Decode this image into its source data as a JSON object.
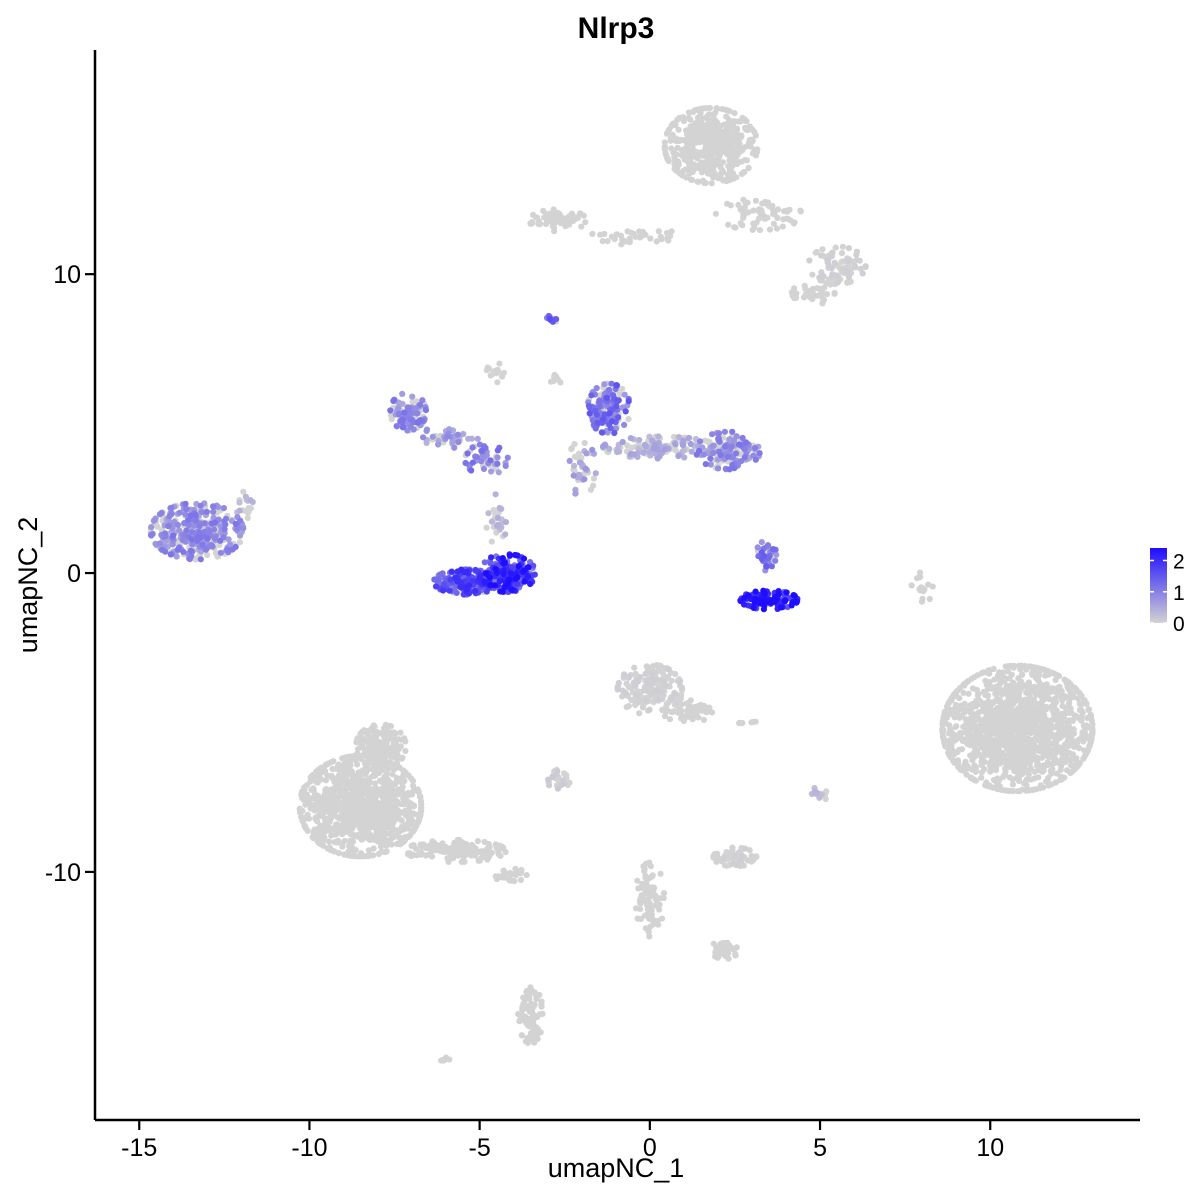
{
  "chart_data": {
    "type": "scatter",
    "title": "Nlrp3",
    "xlabel": "umapNC_1",
    "ylabel": "umapNC_2",
    "xlim": [
      -16.3,
      14.4
    ],
    "ylim": [
      -18.3,
      17.5
    ],
    "x_ticks": [
      -15,
      -10,
      -5,
      0,
      5,
      10
    ],
    "y_ticks": [
      -10,
      0,
      10
    ],
    "grid": false,
    "colors": {
      "low": "#d3d3d3",
      "high": "#1f0dff"
    },
    "legend": {
      "placement": "right",
      "min": 0,
      "max": 2.4,
      "ticks": [
        0,
        1,
        2
      ]
    },
    "clusters": [
      {
        "cx": 1.8,
        "cy": 14.3,
        "rx": 1.3,
        "ry": 1.2,
        "n": 500,
        "expr": 0.0
      },
      {
        "cx": 3.2,
        "cy": 12.0,
        "rx": 1.2,
        "ry": 0.5,
        "n": 70,
        "expr": 0.0
      },
      {
        "cx": 5.5,
        "cy": 10.3,
        "rx": 0.8,
        "ry": 0.6,
        "n": 80,
        "expr": 0.05
      },
      {
        "cx": 4.8,
        "cy": 9.4,
        "rx": 0.6,
        "ry": 0.4,
        "n": 40,
        "expr": 0.0
      },
      {
        "cx": -2.7,
        "cy": 11.8,
        "rx": 0.8,
        "ry": 0.35,
        "n": 70,
        "expr": 0.0
      },
      {
        "cx": -0.5,
        "cy": 11.3,
        "rx": 1.2,
        "ry": 0.3,
        "n": 35,
        "expr": 0.0
      },
      {
        "cx": -2.9,
        "cy": 8.5,
        "rx": 0.2,
        "ry": 0.12,
        "n": 12,
        "expr": 1.3
      },
      {
        "cx": -7.1,
        "cy": 5.4,
        "rx": 0.5,
        "ry": 0.6,
        "n": 110,
        "expr": 0.9
      },
      {
        "cx": -6.0,
        "cy": 4.5,
        "rx": 0.9,
        "ry": 0.35,
        "n": 40,
        "expr": 0.7
      },
      {
        "cx": -4.8,
        "cy": 3.8,
        "rx": 0.6,
        "ry": 0.5,
        "n": 50,
        "expr": 1.0
      },
      {
        "cx": -4.5,
        "cy": 1.8,
        "rx": 0.3,
        "ry": 0.8,
        "n": 25,
        "expr": 0.4
      },
      {
        "cx": -4.2,
        "cy": 0.0,
        "rx": 0.8,
        "ry": 0.6,
        "n": 180,
        "expr": 1.9
      },
      {
        "cx": -5.4,
        "cy": -0.3,
        "rx": 0.9,
        "ry": 0.4,
        "n": 180,
        "expr": 1.6
      },
      {
        "cx": -1.2,
        "cy": 5.5,
        "rx": 0.6,
        "ry": 0.8,
        "n": 150,
        "expr": 1.2
      },
      {
        "cx": 0.3,
        "cy": 4.2,
        "rx": 1.6,
        "ry": 0.35,
        "n": 150,
        "expr": 0.5
      },
      {
        "cx": 2.3,
        "cy": 4.1,
        "rx": 0.9,
        "ry": 0.6,
        "n": 140,
        "expr": 0.9
      },
      {
        "cx": -2.0,
        "cy": 3.5,
        "rx": 0.4,
        "ry": 0.9,
        "n": 40,
        "expr": 0.6
      },
      {
        "cx": -13.3,
        "cy": 1.4,
        "rx": 1.3,
        "ry": 0.9,
        "n": 330,
        "expr": 0.9
      },
      {
        "cx": -11.9,
        "cy": 2.2,
        "rx": 0.35,
        "ry": 0.5,
        "n": 18,
        "expr": 0.4
      },
      {
        "cx": 3.4,
        "cy": 0.6,
        "rx": 0.3,
        "ry": 0.5,
        "n": 40,
        "expr": 1.2
      },
      {
        "cx": 3.5,
        "cy": -0.9,
        "rx": 0.8,
        "ry": 0.3,
        "n": 110,
        "expr": 2.2
      },
      {
        "cx": 10.8,
        "cy": -5.2,
        "rx": 2.1,
        "ry": 2.0,
        "n": 1400,
        "expr": 0.0
      },
      {
        "cx": 8.0,
        "cy": -0.5,
        "rx": 0.3,
        "ry": 0.5,
        "n": 15,
        "expr": 0.0
      },
      {
        "cx": 0.0,
        "cy": -3.9,
        "rx": 0.9,
        "ry": 0.8,
        "n": 180,
        "expr": 0.05
      },
      {
        "cx": 1.1,
        "cy": -4.6,
        "rx": 0.7,
        "ry": 0.4,
        "n": 60,
        "expr": 0.0
      },
      {
        "cx": -8.5,
        "cy": -7.8,
        "rx": 1.7,
        "ry": 1.6,
        "n": 1000,
        "expr": 0.0
      },
      {
        "cx": -7.9,
        "cy": -5.8,
        "rx": 0.7,
        "ry": 0.7,
        "n": 160,
        "expr": 0.0
      },
      {
        "cx": -5.7,
        "cy": -9.3,
        "rx": 1.4,
        "ry": 0.35,
        "n": 150,
        "expr": 0.0
      },
      {
        "cx": -4.1,
        "cy": -10.1,
        "rx": 0.5,
        "ry": 0.2,
        "n": 30,
        "expr": 0.0
      },
      {
        "cx": -2.7,
        "cy": -6.9,
        "rx": 0.35,
        "ry": 0.3,
        "n": 30,
        "expr": 0.1
      },
      {
        "cx": 2.5,
        "cy": -9.5,
        "rx": 0.6,
        "ry": 0.3,
        "n": 60,
        "expr": 0.05
      },
      {
        "cx": 0.0,
        "cy": -10.9,
        "rx": 0.4,
        "ry": 1.2,
        "n": 70,
        "expr": 0.0
      },
      {
        "cx": 2.2,
        "cy": -12.6,
        "rx": 0.4,
        "ry": 0.3,
        "n": 35,
        "expr": 0.0
      },
      {
        "cx": -3.5,
        "cy": -14.8,
        "rx": 0.35,
        "ry": 0.9,
        "n": 80,
        "expr": 0.0
      },
      {
        "cx": 5.0,
        "cy": -7.4,
        "rx": 0.25,
        "ry": 0.25,
        "n": 15,
        "expr": 0.3
      },
      {
        "cx": 2.8,
        "cy": -5.0,
        "rx": 0.3,
        "ry": 0.15,
        "n": 6,
        "expr": 0.0
      },
      {
        "cx": -6.0,
        "cy": -16.3,
        "rx": 0.15,
        "ry": 0.12,
        "n": 6,
        "expr": 0.0
      },
      {
        "cx": -2.8,
        "cy": 6.5,
        "rx": 0.2,
        "ry": 0.2,
        "n": 8,
        "expr": 0.0
      },
      {
        "cx": -4.5,
        "cy": 6.8,
        "rx": 0.3,
        "ry": 0.4,
        "n": 15,
        "expr": 0.0
      }
    ]
  }
}
